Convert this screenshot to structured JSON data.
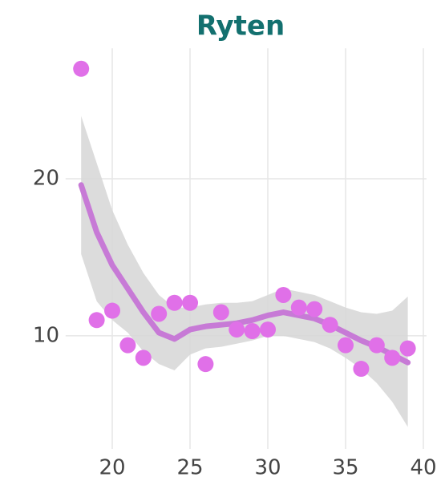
{
  "chart_data": {
    "type": "scatter",
    "title": "Ryten",
    "x": [
      18,
      19,
      20,
      21,
      22,
      23,
      24,
      25,
      26,
      27,
      28,
      29,
      30,
      31,
      32,
      33,
      34,
      35,
      36,
      37,
      38,
      39
    ],
    "values": [
      27.0,
      11.0,
      11.6,
      9.4,
      8.6,
      11.4,
      12.1,
      12.1,
      8.2,
      11.5,
      10.4,
      10.3,
      10.4,
      12.6,
      11.8,
      11.7,
      10.7,
      9.4,
      7.9,
      9.4,
      8.6,
      9.2
    ],
    "smooth": [
      19.6,
      16.6,
      14.5,
      13.0,
      11.5,
      10.2,
      9.8,
      10.4,
      10.6,
      10.7,
      10.8,
      11.0,
      11.3,
      11.5,
      11.3,
      11.1,
      10.7,
      10.2,
      9.7,
      9.3,
      8.8,
      8.3
    ],
    "band_upper": [
      24.0,
      21.0,
      18.0,
      15.8,
      14.0,
      12.6,
      11.8,
      11.8,
      12.0,
      12.1,
      12.1,
      12.2,
      12.6,
      13.0,
      12.8,
      12.6,
      12.2,
      11.8,
      11.5,
      11.4,
      11.6,
      12.5
    ],
    "band_lower": [
      15.2,
      12.2,
      11.0,
      10.2,
      9.0,
      8.2,
      7.8,
      8.8,
      9.2,
      9.3,
      9.5,
      9.7,
      10.0,
      10.0,
      9.8,
      9.6,
      9.2,
      8.6,
      7.9,
      7.0,
      5.8,
      4.2
    ],
    "color": "#e070e8",
    "line_color": "#c77ad6",
    "band_color": "#d6d6d6",
    "xlim": [
      17,
      40.2
    ],
    "ylim": [
      2.8,
      28.3
    ],
    "xticks": [
      20,
      25,
      30,
      35,
      40
    ],
    "yticks": [
      10,
      20
    ],
    "grid": true
  }
}
